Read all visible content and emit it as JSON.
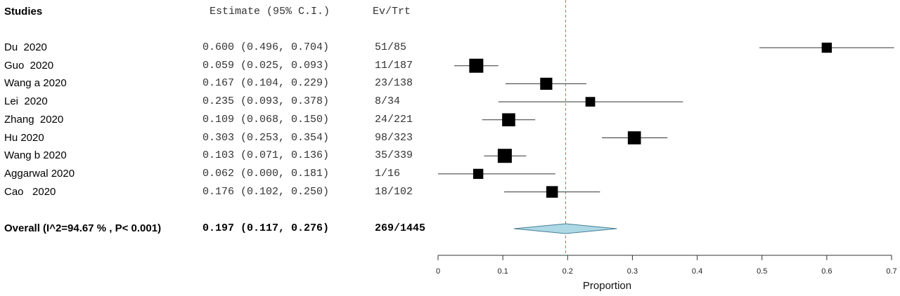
{
  "header": {
    "studies": "Studies",
    "estimate": "Estimate (95% C.I.)",
    "events": "Ev/Trt"
  },
  "chart_data": {
    "type": "forest",
    "xlabel": "Proportion",
    "xlim": [
      0,
      0.7
    ],
    "xticks": [
      "0",
      "0.1",
      "0.2",
      "0.3",
      "0.4",
      "0.5",
      "0.6",
      "0.7"
    ],
    "reference_line": 0.197,
    "studies": [
      {
        "name": "Du  2020",
        "estimate": 0.6,
        "lower": 0.496,
        "upper": 0.704,
        "estimate_text": "0.600 (0.496, 0.704)",
        "ev_trt": "51/85",
        "weight": 0.6
      },
      {
        "name": "Guo  2020",
        "estimate": 0.059,
        "lower": 0.025,
        "upper": 0.093,
        "estimate_text": "0.059 (0.025, 0.093)",
        "ev_trt": "11/187",
        "weight": 1.0
      },
      {
        "name": "Wang a 2020",
        "estimate": 0.167,
        "lower": 0.104,
        "upper": 0.229,
        "estimate_text": "0.167 (0.104, 0.229)",
        "ev_trt": "23/138",
        "weight": 0.8
      },
      {
        "name": "Lei  2020",
        "estimate": 0.235,
        "lower": 0.093,
        "upper": 0.378,
        "estimate_text": "0.235 (0.093, 0.378)",
        "ev_trt": "8/34",
        "weight": 0.55
      },
      {
        "name": "Zhang  2020",
        "estimate": 0.109,
        "lower": 0.068,
        "upper": 0.15,
        "estimate_text": "0.109 (0.068, 0.150)",
        "ev_trt": "24/221",
        "weight": 0.9
      },
      {
        "name": "Hu 2020",
        "estimate": 0.303,
        "lower": 0.253,
        "upper": 0.354,
        "estimate_text": "0.303 (0.253, 0.354)",
        "ev_trt": "98/323",
        "weight": 0.9
      },
      {
        "name": "Wang b 2020",
        "estimate": 0.103,
        "lower": 0.071,
        "upper": 0.136,
        "estimate_text": "0.103 (0.071, 0.136)",
        "ev_trt": "35/339",
        "weight": 1.0
      },
      {
        "name": "Aggarwal 2020",
        "estimate": 0.062,
        "lower": 0.0,
        "upper": 0.181,
        "estimate_text": "0.062 (0.000, 0.181)",
        "ev_trt": "1/16",
        "weight": 0.6
      },
      {
        "name": "Cao   2020",
        "estimate": 0.176,
        "lower": 0.102,
        "upper": 0.25,
        "estimate_text": "0.176 (0.102, 0.250)",
        "ev_trt": "18/102",
        "weight": 0.75
      }
    ],
    "overall": {
      "name": "Overall (I^2=94.67 % , P< 0.001)",
      "estimate": 0.197,
      "lower": 0.117,
      "upper": 0.276,
      "estimate_text": "0.197 (0.117, 0.276)",
      "ev_trt": "269/1445"
    },
    "colors": {
      "diamond_fill": "#add8e6",
      "reference_line": "#e06060",
      "marker": "#000000"
    }
  }
}
